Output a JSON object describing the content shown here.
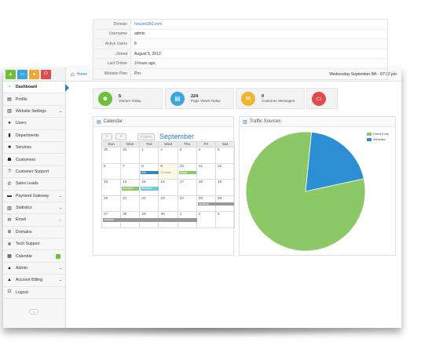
{
  "topbar": {
    "breadcrumb": "Home",
    "datetime": "Wednesday September 9th - 07:32 pm"
  },
  "sidebar": {
    "shortcuts": [
      {
        "icon": "chart-icon",
        "color": "#6fbf3a"
      },
      {
        "icon": "window-icon",
        "color": "#3aa5e0"
      },
      {
        "icon": "user-icon",
        "color": "#f0a830"
      },
      {
        "icon": "power-icon",
        "color": "#e04b4b"
      }
    ],
    "items": [
      {
        "label": "Dashboard",
        "icon": "dashboard-icon",
        "glyph": "◔",
        "active": true
      },
      {
        "label": "Profile",
        "icon": "id-card-icon",
        "glyph": "▤"
      },
      {
        "label": "Website Settings",
        "icon": "bar-chart-icon",
        "glyph": "▥",
        "chevron": true
      },
      {
        "label": "Users",
        "icon": "user-icon",
        "glyph": "●"
      },
      {
        "label": "Departments",
        "icon": "building-icon",
        "glyph": "▮"
      },
      {
        "label": "Services",
        "icon": "briefcase-icon",
        "glyph": "■"
      },
      {
        "label": "Customers",
        "icon": "group-icon",
        "glyph": "☗"
      },
      {
        "label": "Customer Support",
        "icon": "question-icon",
        "glyph": "?"
      },
      {
        "label": "Sales Leads",
        "icon": "phone-icon",
        "glyph": "✆"
      },
      {
        "label": "Payment Gateway",
        "icon": "credit-card-icon",
        "glyph": "▬",
        "chevron": true
      },
      {
        "label": "Statistics",
        "icon": "bar-chart-icon",
        "glyph": "▥",
        "chevron": true
      },
      {
        "label": "Email",
        "icon": "envelope-icon",
        "glyph": "✉",
        "chevron": true
      },
      {
        "label": "Domains",
        "icon": "globe-icon",
        "glyph": "⊕"
      },
      {
        "label": "Tech Support",
        "icon": "wrench-icon",
        "glyph": "✲"
      },
      {
        "label": "Calendar",
        "icon": "calendar-icon",
        "glyph": "▦",
        "badge": true
      },
      {
        "label": "Admin",
        "icon": "lock-icon",
        "glyph": "▲",
        "chevron": true
      },
      {
        "label": "Account Billing",
        "icon": "lock-icon",
        "glyph": "▲",
        "chevron": true
      },
      {
        "label": "Logout",
        "icon": "power-icon",
        "glyph": "⏻"
      }
    ]
  },
  "info": {
    "rows": [
      {
        "key": "Domain",
        "value": "houses360.com",
        "link": true
      },
      {
        "key": "Username",
        "value": "admin"
      },
      {
        "key": "Active Users",
        "value": "8"
      },
      {
        "key": "Joined",
        "value": "August 5, 2013"
      },
      {
        "key": "Last Online",
        "value": "3 hours ago"
      },
      {
        "key": "Website Plan",
        "value": "Pro"
      }
    ]
  },
  "tiles": [
    {
      "icon": "users-icon",
      "color": "#6fbf3a",
      "number": "5",
      "label": "Visitors Today"
    },
    {
      "icon": "document-icon",
      "color": "#3aa5e0",
      "number": "224",
      "label": "Page Views Today"
    },
    {
      "icon": "envelope-icon",
      "color": "#f0b430",
      "number": "0",
      "label": "Customer Messages"
    },
    {
      "icon": "monitor-icon",
      "color": "#e04b4b",
      "number": "",
      "label": ""
    }
  ],
  "calendar": {
    "title": "Calendar",
    "month": "September",
    "prev": "‹",
    "next": "›",
    "today": "TODAY",
    "weekdays": [
      "Sun",
      "Mon",
      "Tue",
      "Wed",
      "Thu",
      "Fri",
      "Sat"
    ],
    "weeks": [
      [
        "30",
        "31",
        "1",
        "2",
        "3",
        "4",
        "5"
      ],
      [
        "6",
        "7",
        "8",
        "9",
        "10",
        "11",
        "12"
      ],
      [
        "13",
        "14",
        "15",
        "16",
        "17",
        "18",
        "19"
      ],
      [
        "20",
        "21",
        "22",
        "23",
        "24",
        "25",
        "26"
      ],
      [
        "27",
        "28",
        "29",
        "30",
        "1",
        "2",
        "3"
      ]
    ],
    "events": {
      "e1": "test",
      "e2": "+2 more",
      "e3": "adsgrf",
      "e4": "afcadsfc",
      "e5": "dfsxfvbc",
      "e6": "vacation",
      "e7": "vacation"
    }
  },
  "traffic": {
    "title": "Traffic Sources",
    "legend": [
      {
        "label": "Direct Entry",
        "color": "#8cc866"
      },
      {
        "label": "Websites",
        "color": "#2d8fd3"
      }
    ]
  },
  "chart_data": {
    "type": "pie",
    "title": "Traffic Sources",
    "slices": [
      {
        "label": "Direct Entry",
        "value": 80,
        "color": "#8cc866"
      },
      {
        "label": "Websites",
        "value": 20,
        "color": "#2d8fd3"
      }
    ]
  }
}
